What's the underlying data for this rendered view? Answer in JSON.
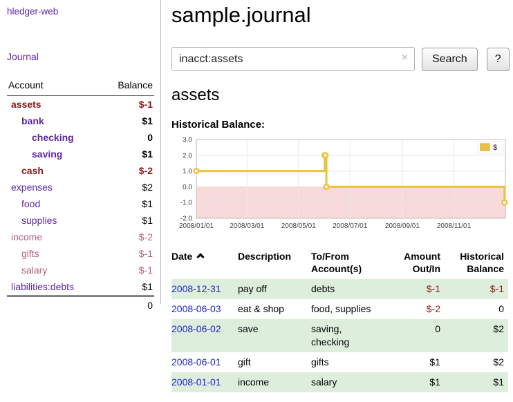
{
  "sidebar": {
    "brand": "hledger-web",
    "journal_link": "Journal",
    "accounts_header": {
      "account": "Account",
      "balance": "Balance"
    },
    "accounts": [
      {
        "name": "assets",
        "balance": "$-1",
        "indent": 0,
        "negative": true,
        "dim": false,
        "bold": true
      },
      {
        "name": "bank",
        "balance": "$1",
        "indent": 1,
        "negative": false,
        "dim": false,
        "bold": true
      },
      {
        "name": "checking",
        "balance": "0",
        "indent": 2,
        "negative": false,
        "dim": false,
        "bold": true
      },
      {
        "name": "saving",
        "balance": "$1",
        "indent": 2,
        "negative": false,
        "dim": false,
        "bold": true
      },
      {
        "name": "cash",
        "balance": "$-2",
        "indent": 1,
        "negative": true,
        "dim": false,
        "bold": true
      },
      {
        "name": "expenses",
        "balance": "$2",
        "indent": 0,
        "negative": false,
        "dim": false,
        "bold": false
      },
      {
        "name": "food",
        "balance": "$1",
        "indent": 1,
        "negative": false,
        "dim": false,
        "bold": false
      },
      {
        "name": "supplies",
        "balance": "$1",
        "indent": 1,
        "negative": false,
        "dim": false,
        "bold": false
      },
      {
        "name": "income",
        "balance": "$-2",
        "indent": 0,
        "negative": true,
        "dim": true,
        "bold": false
      },
      {
        "name": "gifts",
        "balance": "$-1",
        "indent": 1,
        "negative": true,
        "dim": true,
        "bold": false
      },
      {
        "name": "salary",
        "balance": "$-1",
        "indent": 1,
        "negative": true,
        "dim": true,
        "bold": false
      },
      {
        "name": "liabilities:debts",
        "balance": "$1",
        "indent": 0,
        "negative": false,
        "dim": false,
        "bold": false
      }
    ],
    "total": "0"
  },
  "main": {
    "title": "sample.journal",
    "search": {
      "value": "inacct:assets",
      "clear_icon": "×",
      "button_label": "Search",
      "help_label": "?"
    },
    "account_heading": "assets",
    "chart_label": "Historical Balance:",
    "register": {
      "headers": {
        "date": "Date",
        "description": "Description",
        "account": "To/From Account(s)",
        "amount": "Amount Out/In",
        "balance": "Historical Balance"
      },
      "rows": [
        {
          "date": "2008-12-31",
          "description": "pay off",
          "account": "debts",
          "amount": "$-1",
          "balance": "$-1"
        },
        {
          "date": "2008-06-03",
          "description": "eat & shop",
          "account": "food, supplies",
          "amount": "$-2",
          "balance": "0"
        },
        {
          "date": "2008-06-02",
          "description": "save",
          "account": "saving, checking",
          "amount": "0",
          "balance": "$2"
        },
        {
          "date": "2008-06-01",
          "description": "gift",
          "account": "gifts",
          "amount": "$1",
          "balance": "$2"
        },
        {
          "date": "2008-01-01",
          "description": "income",
          "account": "salary",
          "amount": "$1",
          "balance": "$1"
        }
      ]
    }
  },
  "chart_data": {
    "type": "line",
    "step": true,
    "title": "Historical Balance",
    "series": [
      {
        "name": "$",
        "color": "#edc240",
        "points": [
          [
            "2008-01-01",
            1
          ],
          [
            "2008-06-01",
            2
          ],
          [
            "2008-06-02",
            2
          ],
          [
            "2008-06-03",
            0
          ],
          [
            "2008-12-31",
            -1
          ]
        ]
      }
    ],
    "x_ticks": [
      "2008/01/01",
      "2008/03/01",
      "2008/05/01",
      "2008/07/01",
      "2008/09/01",
      "2008/11/01"
    ],
    "y_ticks": [
      3.0,
      2.0,
      1.0,
      0.0,
      -1.0,
      -2.0
    ],
    "ylim": [
      -2,
      3
    ],
    "xlim": [
      "2008-01-01",
      "2009-01-01"
    ],
    "legend_position": "top-right",
    "grid": true,
    "negative_region_color": "#f9dada"
  },
  "colors": {
    "link_purple": "#5b27a5",
    "negative_red": "#8b1515",
    "dim_negative": "#b2607c",
    "date_blue": "#2222cc",
    "row_green": "#ddeedd",
    "chart_gold": "#edc240"
  }
}
